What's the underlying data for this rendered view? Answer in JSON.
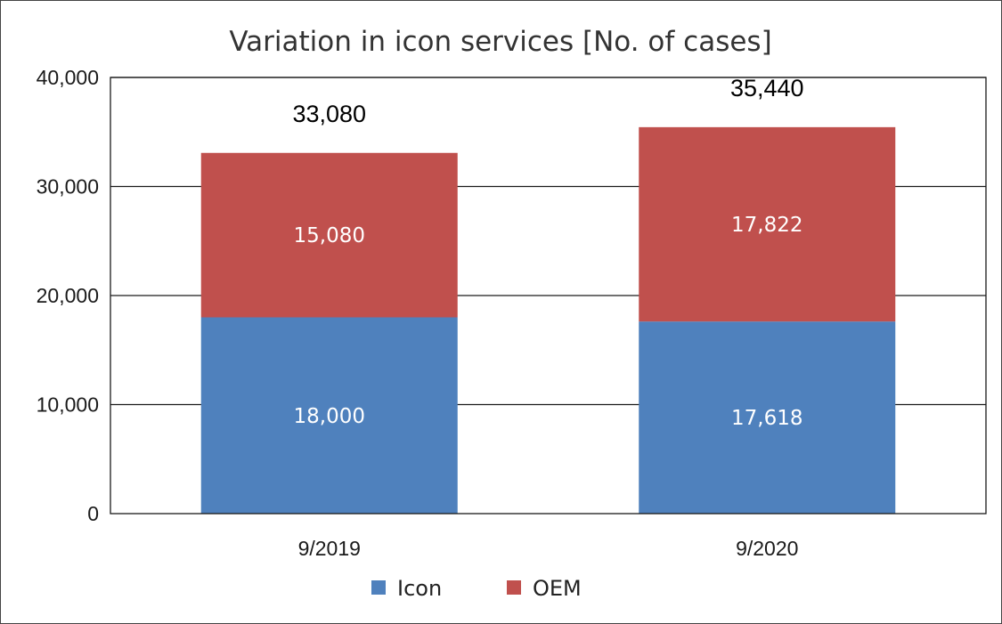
{
  "chart_data": {
    "type": "bar",
    "stacked": true,
    "title": "Variation in icon services [No. of cases]",
    "categories": [
      "9/2019",
      "9/2020"
    ],
    "series": [
      {
        "name": "Icon",
        "values": [
          18000,
          17618
        ],
        "value_labels": [
          "18,000",
          "17,618"
        ],
        "color": "#4f81bd"
      },
      {
        "name": "OEM",
        "values": [
          15080,
          17822
        ],
        "value_labels": [
          "15,080",
          "17,822"
        ],
        "color": "#c0504d"
      }
    ],
    "totals": [
      33080,
      35440
    ],
    "total_labels": [
      "33,080",
      "35,440"
    ],
    "ylim": [
      0,
      40000
    ],
    "yticks": [
      0,
      10000,
      20000,
      30000,
      40000
    ],
    "ytick_labels": [
      "0",
      "10,000",
      "20,000",
      "30,000",
      "40,000"
    ],
    "xlabel": "",
    "ylabel": "",
    "grid": true,
    "legend_position": "bottom"
  }
}
